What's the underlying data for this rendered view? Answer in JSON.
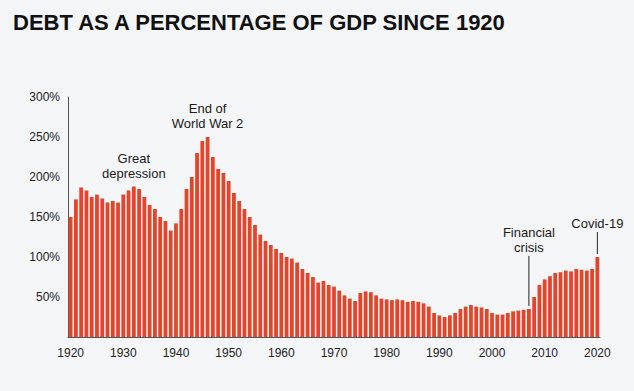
{
  "chart_data": {
    "type": "bar",
    "title": "DEBT AS A PERCENTAGE OF GDP SINCE 1920",
    "categories": [
      "1920",
      null,
      null,
      null,
      null,
      null,
      null,
      null,
      null,
      null,
      "1930",
      null,
      null,
      null,
      null,
      null,
      null,
      null,
      null,
      null,
      "1940",
      null,
      null,
      null,
      null,
      null,
      null,
      null,
      null,
      null,
      "1950",
      null,
      null,
      null,
      null,
      null,
      null,
      null,
      null,
      null,
      "1960",
      null,
      null,
      null,
      null,
      null,
      null,
      null,
      null,
      null,
      "1970",
      null,
      null,
      null,
      null,
      null,
      null,
      null,
      null,
      null,
      "1980",
      null,
      null,
      null,
      null,
      null,
      null,
      null,
      null,
      null,
      "1990",
      null,
      null,
      null,
      null,
      null,
      null,
      null,
      null,
      null,
      "2000",
      null,
      null,
      null,
      null,
      null,
      null,
      null,
      null,
      null,
      "2010",
      null,
      null,
      null,
      null,
      null,
      null,
      null,
      null,
      null,
      "2020"
    ],
    "values": [
      150,
      172,
      187,
      183,
      175,
      178,
      173,
      168,
      170,
      168,
      178,
      183,
      188,
      185,
      175,
      165,
      160,
      150,
      145,
      133,
      142,
      160,
      185,
      200,
      230,
      245,
      250,
      225,
      210,
      205,
      195,
      180,
      170,
      160,
      150,
      140,
      128,
      120,
      115,
      110,
      105,
      100,
      98,
      93,
      85,
      80,
      75,
      68,
      70,
      65,
      63,
      58,
      52,
      48,
      45,
      55,
      57,
      56,
      52,
      48,
      47,
      46,
      47,
      46,
      44,
      45,
      44,
      42,
      38,
      30,
      27,
      25,
      27,
      30,
      35,
      38,
      40,
      38,
      37,
      35,
      30,
      28,
      28,
      30,
      32,
      33,
      34,
      35,
      50,
      65,
      72,
      76,
      80,
      81,
      83,
      82,
      85,
      84,
      83,
      85,
      100
    ],
    "color": "#e3452b",
    "ylim": [
      0,
      300
    ],
    "yticks": [
      {
        "value": 50,
        "label": "50%"
      },
      {
        "value": 100,
        "label": "100%"
      },
      {
        "value": 150,
        "label": "150%"
      },
      {
        "value": 200,
        "label": "200%"
      },
      {
        "value": 250,
        "label": "250%"
      },
      {
        "value": 300,
        "label": "300%"
      }
    ],
    "grid": false,
    "annotations": [
      "Great depression",
      "End of World War 2",
      "Financial crisis",
      "Covid-19"
    ]
  }
}
